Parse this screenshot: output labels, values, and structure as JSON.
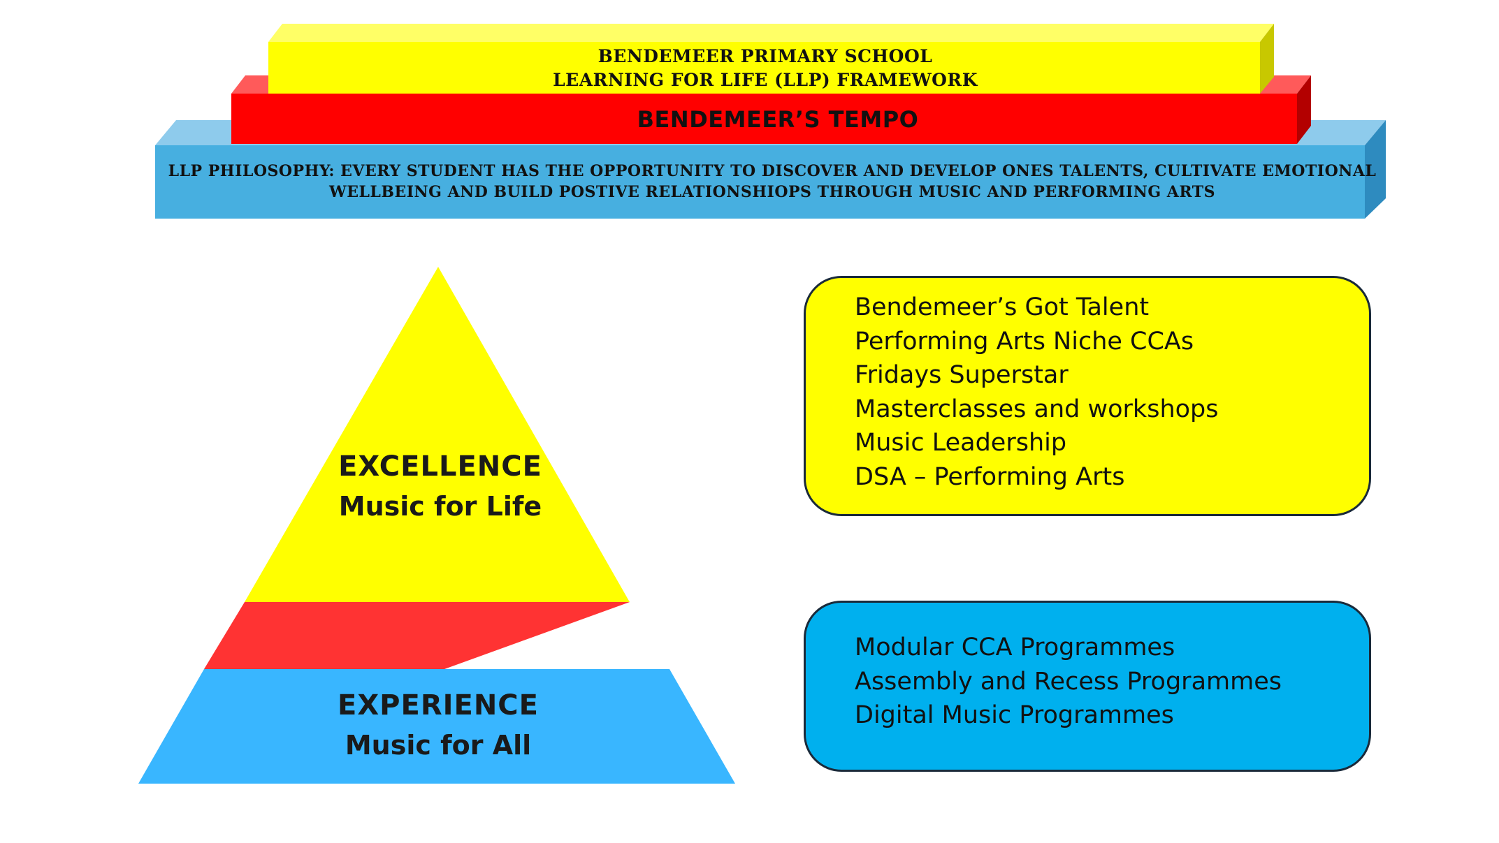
{
  "header": {
    "school_line1": "BENDEMEER PRIMARY SCHOOL",
    "school_line2": "LEARNING FOR LIFE (LLP) FRAMEWORK",
    "tempo": "BENDEMEER’S TEMPO",
    "philosophy_line1": "LLP PHILOSOPHY: EVERY STUDENT HAS THE OPPORTUNITY TO DISCOVER AND DEVELOP ONES TALENTS, CULTIVATE EMOTIONAL",
    "philosophy_line2": "WELLBEING AND BUILD POSTIVE RELATIONSHIOPS THROUGH MUSIC AND PERFORMING ARTS"
  },
  "pyramid": {
    "top_title": "EXCELLENCE",
    "top_subtitle": "Music for Life",
    "bottom_title": "EXPERIENCE",
    "bottom_subtitle": "Music for All"
  },
  "excellence_box": {
    "items": [
      "Bendemeer’s Got Talent",
      "Performing Arts Niche CCAs",
      "Fridays Superstar",
      "Masterclasses and workshops",
      "Music Leadership",
      "DSA – Performing Arts"
    ]
  },
  "experience_box": {
    "items": [
      "Modular CCA Programmes",
      "Assembly and Recess Programmes",
      "Digital Music Programmes"
    ]
  },
  "colors": {
    "yellow": "#ffff00",
    "red": "#ff0000",
    "blue_bar": "#47afe0",
    "blue_box": "#00b0ee",
    "blue_pyramid": "#39b6ff",
    "red_connector": "#ff3333"
  }
}
